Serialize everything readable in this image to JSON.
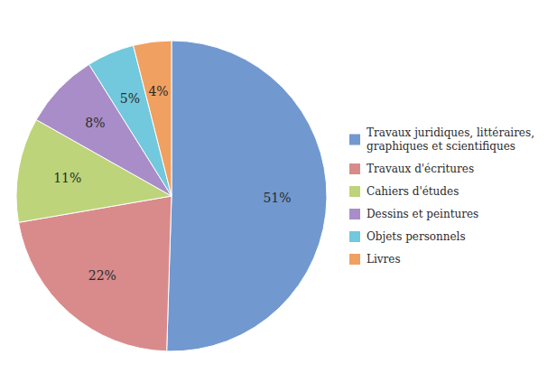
{
  "chart_data": {
    "type": "pie",
    "categories": [
      "Travaux juridiques, littéraires,\ngraphiques et scientifiques",
      "Travaux d'écritures",
      "Cahiers d'études",
      "Dessins et peintures",
      "Objets personnels",
      "Livres"
    ],
    "values": [
      51,
      22,
      11,
      8,
      5,
      4
    ],
    "value_labels": [
      "51%",
      "22%",
      "11%",
      "8%",
      "5%",
      "4%"
    ],
    "colors": [
      "#7199D0",
      "#D98B8B",
      "#BDD47A",
      "#A98DC8",
      "#72C8DC",
      "#F0A060"
    ],
    "data_labels": true,
    "legend": "right"
  }
}
